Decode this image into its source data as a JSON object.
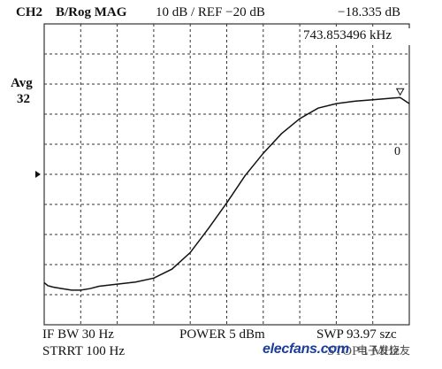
{
  "header": {
    "channel": "CH2",
    "format": "B/Rog MAG",
    "scale_ref": "10 dB / REF −20 dB",
    "marker_value": "−18.335 dB",
    "marker_freq": "743.853496 kHz"
  },
  "side": {
    "avg_label": "Avg",
    "avg_count": "32"
  },
  "footer": {
    "if_bw": "IF BW 30 Hz",
    "power": "POWER 5 dBm",
    "sweep": "SWP 93.97 szc",
    "start": "STRRT 100 Hz",
    "stop": "STOP 1 MHz"
  },
  "marker": {
    "label": "0"
  },
  "watermark": {
    "site": "elecfans.com",
    "cn": "电子发烧友"
  },
  "colors": {
    "trace": "#111111",
    "grid": "#333333",
    "watermark": "#1a3c9c"
  },
  "chart_data": {
    "type": "line",
    "title": "",
    "xlabel": "",
    "ylabel": "",
    "x_range_hz": [
      100,
      1000000
    ],
    "ref_level_db": -20,
    "scale_db_per_div": 10,
    "x_divisions": 10,
    "y_divisions": 10,
    "grid": true,
    "series": [
      {
        "x_div": [
          0.0,
          0.1,
          0.25,
          0.5,
          0.75,
          1.0,
          1.25,
          1.5,
          2.0,
          2.5,
          3.0,
          3.5,
          4.0,
          4.5,
          5.0,
          5.5,
          6.0,
          6.5,
          7.0,
          7.5,
          8.0,
          8.5,
          9.0,
          9.5,
          9.75,
          10.0
        ],
        "y_div_from_top": [
          8.6,
          8.7,
          8.75,
          8.8,
          8.85,
          8.85,
          8.8,
          8.72,
          8.65,
          8.58,
          8.45,
          8.15,
          7.6,
          6.8,
          5.95,
          5.05,
          4.3,
          3.65,
          3.15,
          2.8,
          2.65,
          2.57,
          2.52,
          2.47,
          2.45,
          2.65
        ]
      }
    ],
    "marker": {
      "x_div": 9.75,
      "y_div_from_top": 2.45,
      "value_db": -18.335,
      "freq_khz": 743.853496
    }
  }
}
